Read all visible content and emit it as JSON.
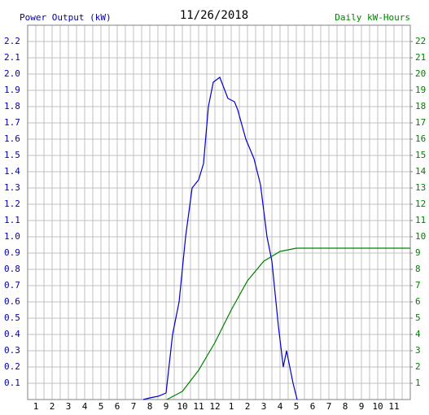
{
  "chart_data": {
    "type": "line",
    "title": "11/26/2018",
    "y_label": "Power Output (kW)",
    "y2_label": "Daily kW-Hours",
    "xlim": [
      0.5,
      24
    ],
    "xticks": [
      1,
      2,
      3,
      4,
      5,
      6,
      7,
      8,
      9,
      10,
      11,
      12,
      {
        "value": 13,
        "label": "1"
      },
      {
        "value": 14,
        "label": "2"
      },
      {
        "value": 15,
        "label": "3"
      },
      {
        "value": 16,
        "label": "4"
      },
      {
        "value": 17,
        "label": "5"
      },
      {
        "value": 18,
        "label": "6"
      },
      {
        "value": 19,
        "label": "7"
      },
      {
        "value": 20,
        "label": "8"
      },
      {
        "value": 21,
        "label": "9"
      },
      {
        "value": 22,
        "label": "10"
      },
      {
        "value": 23,
        "label": "11"
      }
    ],
    "ylim": [
      0,
      2.3
    ],
    "yticks": [
      0.1,
      0.2,
      0.3,
      0.4,
      0.5,
      0.6,
      0.7,
      0.8,
      0.9,
      {
        "value": 1,
        "label": "1.0"
      },
      1.1,
      1.2,
      1.3,
      1.4,
      1.5,
      1.6,
      1.7,
      1.8,
      1.9,
      {
        "value": 2,
        "label": "2.0"
      },
      2.1,
      2.2
    ],
    "y2lim": [
      0,
      23
    ],
    "y2ticks": [
      1,
      2,
      3,
      4,
      5,
      6,
      7,
      8,
      9,
      10,
      11,
      12,
      13,
      14,
      15,
      16,
      17,
      18,
      19,
      20,
      21,
      22
    ],
    "grid": true,
    "series": [
      {
        "name": "Power Output (kW)",
        "color": "#0000cc",
        "x": [
          7.6,
          8,
          8.5,
          9,
          9.4,
          9.8,
          10.2,
          10.6,
          11,
          11.3,
          11.6,
          11.9,
          12.3,
          12.8,
          13.2,
          13.4,
          13.9,
          14.4,
          14.8,
          15.2,
          15.5,
          15.9,
          16.2,
          16.4,
          16.6,
          16.8,
          17.05
        ],
        "values": [
          0,
          0.01,
          0.02,
          0.04,
          0.4,
          0.6,
          1.0,
          1.3,
          1.35,
          1.45,
          1.8,
          1.95,
          1.98,
          1.85,
          1.83,
          1.78,
          1.6,
          1.48,
          1.32,
          1.0,
          0.85,
          0.45,
          0.2,
          0.3,
          0.2,
          0.1,
          0
        ]
      },
      {
        "name": "Daily kW-Hours",
        "color": "#008000",
        "axis": "y2",
        "x": [
          9.05,
          10,
          11,
          12,
          13,
          14,
          15,
          16,
          17,
          24
        ],
        "values": [
          0,
          0.5,
          1.8,
          3.5,
          5.5,
          7.3,
          8.5,
          9.1,
          9.3,
          9.3
        ]
      }
    ]
  }
}
